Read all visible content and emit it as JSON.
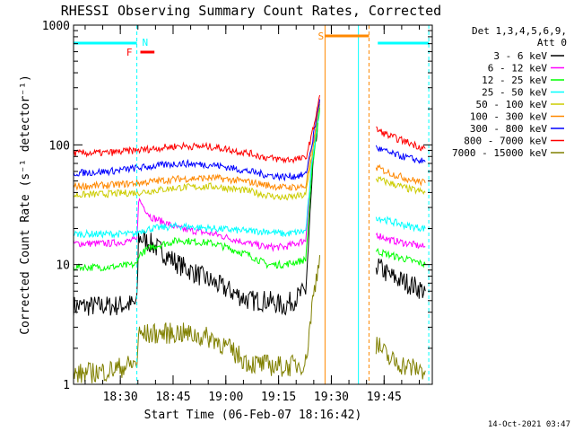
{
  "chart_data": {
    "type": "line",
    "title": "RHESSI Observing Summary Count Rates, Corrected",
    "xlabel": "Start Time (06-Feb-07 18:16:42)",
    "ylabel": "Corrected Count Rate (s⁻¹ detector⁻¹)",
    "ylog": true,
    "ylim": [
      1,
      1000
    ],
    "xlim_minutes_after_1816": [
      0,
      102
    ],
    "x_ticks": [
      "18:30",
      "18:45",
      "19:00",
      "19:15",
      "19:30",
      "19:45"
    ],
    "y_ticks": [
      "1",
      "10",
      "100",
      "1000"
    ],
    "timestamp": "14-Oct-2021 03:47",
    "legend": {
      "header": [
        "Det 1,3,4,5,6,9,",
        "Att 0"
      ],
      "placement": "right"
    },
    "markers": {
      "night_label": "N",
      "flare_label": "F",
      "saa_label": "S"
    },
    "series": [
      {
        "name": "3 - 6 keV",
        "color": "#000000",
        "t": [
          0,
          10,
          18,
          18.5,
          22,
          30,
          40,
          50,
          55,
          60,
          66,
          68,
          70,
          70.5,
          86,
          90,
          95,
          100
        ],
        "y": [
          4.5,
          4.5,
          4.7,
          17,
          15,
          10,
          7,
          5,
          5,
          4.5,
          6,
          60,
          200,
          null,
          10,
          8,
          7,
          6
        ]
      },
      {
        "name": "6 - 12 keV",
        "color": "#ff00ff",
        "t": [
          0,
          10,
          18,
          18.5,
          22,
          30,
          40,
          50,
          55,
          60,
          66,
          68,
          70,
          70.5,
          86,
          90,
          95,
          100
        ],
        "y": [
          15,
          15,
          16,
          35,
          25,
          20,
          18,
          15,
          14,
          14,
          16,
          90,
          220,
          null,
          18,
          16,
          15,
          14
        ]
      },
      {
        "name": "12 - 25 keV",
        "color": "#00ff00",
        "t": [
          0,
          10,
          18,
          18.5,
          22,
          30,
          40,
          50,
          55,
          60,
          66,
          68,
          70,
          70.5,
          86,
          90,
          95,
          100
        ],
        "y": [
          9.5,
          9.5,
          10,
          12,
          14,
          16,
          15,
          12,
          10,
          10,
          11,
          70,
          200,
          null,
          13,
          12,
          11,
          10
        ]
      },
      {
        "name": "25 - 50 keV",
        "color": "#00ffff",
        "t": [
          0,
          10,
          18,
          18.5,
          22,
          30,
          40,
          50,
          55,
          60,
          66,
          68,
          70,
          70.5,
          86,
          90,
          95,
          100
        ],
        "y": [
          18,
          18,
          18,
          19,
          20,
          21,
          20,
          19,
          19,
          18,
          19,
          80,
          210,
          null,
          25,
          23,
          21,
          20
        ]
      },
      {
        "name": "50 - 100 keV",
        "color": "#cccc00",
        "t": [
          0,
          10,
          18,
          30,
          40,
          50,
          55,
          60,
          66,
          68,
          70,
          70.5,
          86,
          90,
          95,
          100
        ],
        "y": [
          38,
          39,
          40,
          44,
          45,
          41,
          38,
          36,
          38,
          90,
          220,
          null,
          52,
          48,
          43,
          40
        ]
      },
      {
        "name": "100 - 300 keV",
        "color": "#ff8800",
        "t": [
          0,
          10,
          18,
          30,
          40,
          50,
          55,
          60,
          66,
          68,
          70,
          70.5,
          86,
          90,
          95,
          100
        ],
        "y": [
          45,
          46,
          48,
          52,
          53,
          49,
          46,
          44,
          45,
          100,
          230,
          null,
          65,
          58,
          52,
          48
        ]
      },
      {
        "name": "300 - 800 keV",
        "color": "#0000ff",
        "t": [
          0,
          10,
          18,
          30,
          40,
          50,
          55,
          60,
          66,
          68,
          70,
          70.5,
          86,
          90,
          95,
          100
        ],
        "y": [
          58,
          60,
          64,
          70,
          68,
          60,
          56,
          54,
          56,
          110,
          240,
          null,
          95,
          85,
          78,
          72
        ]
      },
      {
        "name": "800 - 7000 keV",
        "color": "#ff0000",
        "t": [
          0,
          10,
          18,
          30,
          40,
          50,
          55,
          60,
          66,
          68,
          70,
          70.5,
          86,
          90,
          95,
          100
        ],
        "y": [
          85,
          86,
          90,
          98,
          96,
          85,
          78,
          75,
          77,
          130,
          260,
          null,
          135,
          118,
          105,
          93
        ]
      },
      {
        "name": "7000 - 15000 keV",
        "color": "#808000",
        "t": [
          0,
          10,
          18,
          18.5,
          30,
          40,
          50,
          60,
          66,
          68,
          70,
          70.5,
          86,
          90,
          95,
          100
        ],
        "y": [
          1.2,
          1.3,
          1.5,
          2.6,
          2.7,
          2.4,
          1.5,
          1.4,
          1.5,
          5,
          12,
          null,
          2.2,
          1.6,
          1.4,
          1.3
        ]
      }
    ]
  }
}
